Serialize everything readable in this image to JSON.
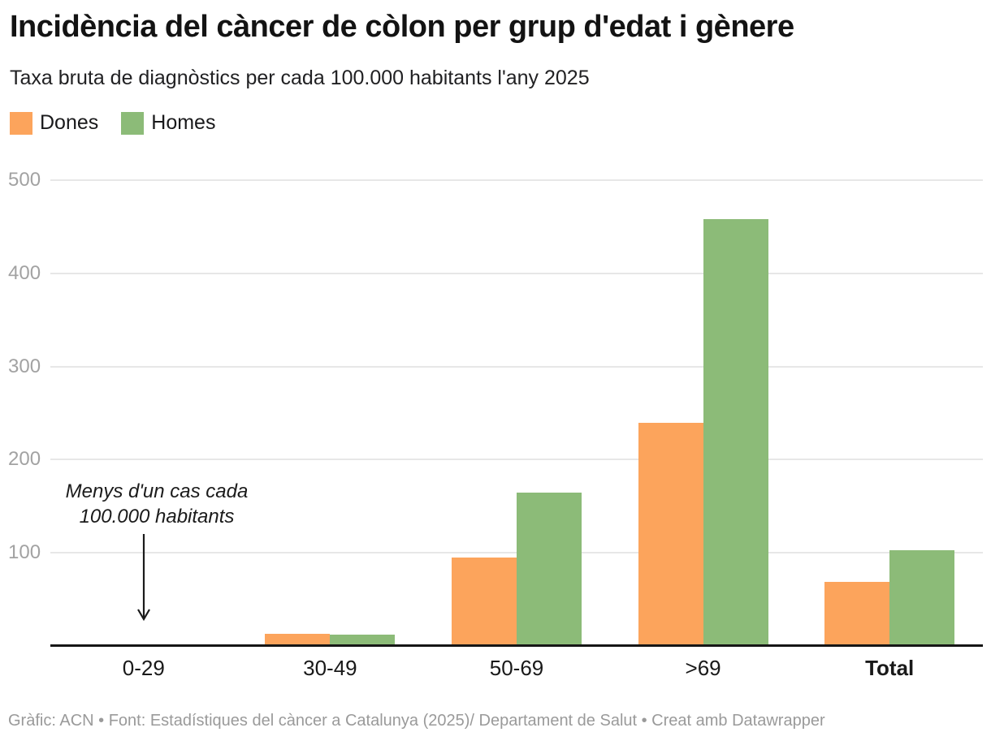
{
  "header": {
    "title": "Incidència del càncer de còlon per grup d'edat i gènere",
    "subtitle": "Taxa bruta de diagnòstics per cada 100.000 habitants l'any 2025"
  },
  "chart_data": {
    "type": "bar",
    "title": "Incidència del càncer de còlon per grup d'edat i gènere",
    "subtitle": "Taxa bruta de diagnòstics per cada 100.000 habitants l'any 2025",
    "categories": [
      "0-29",
      "30-49",
      "50-69",
      ">69",
      "Total"
    ],
    "series": [
      {
        "name": "Dones",
        "color": "#FCA45C",
        "values": [
          0.5,
          12,
          94,
          239,
          68
        ]
      },
      {
        "name": "Homes",
        "color": "#8CBB78",
        "values": [
          0.5,
          11,
          164,
          457,
          102
        ]
      }
    ],
    "ylim": [
      0,
      500
    ],
    "yticks": [
      100,
      200,
      300,
      400,
      500
    ],
    "grid": "horizontal",
    "legend_position": "top-left",
    "bold_category": "Total",
    "annotation": {
      "lines": [
        "Menys d'un cas cada",
        "100.000 habitants"
      ],
      "target_category": "0-29"
    }
  },
  "colors": {
    "dones": "#FCA45C",
    "homes": "#8CBB78",
    "gridline": "#e7e7e7",
    "axis": "#161616",
    "tick_text": "#a2a2a2"
  },
  "footer": {
    "credit": "Gràfic: ACN • Font: Estadístiques del càncer a Catalunya (2025)/ Departament de Salut • Creat amb Datawrapper"
  }
}
